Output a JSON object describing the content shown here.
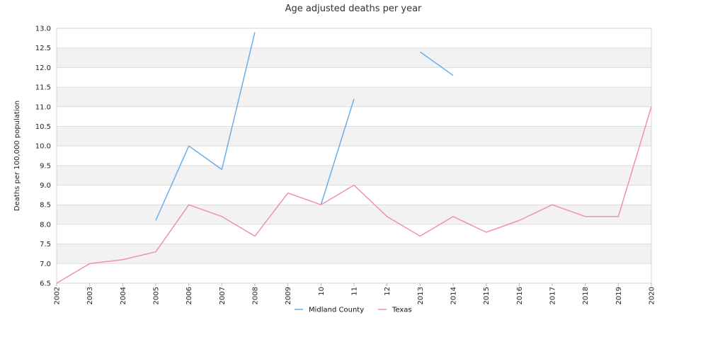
{
  "chart_data": {
    "type": "line",
    "title": "Age adjusted deaths per year",
    "xlabel": "",
    "ylabel": "Deaths per 100,000 population",
    "ylim": [
      6.5,
      13.0
    ],
    "ytick_step": 0.5,
    "x": [
      "2002",
      "2003",
      "2004",
      "2005",
      "2006",
      "2007",
      "2008",
      "2009",
      "2010",
      "2011",
      "2012",
      "2013",
      "2014",
      "2015",
      "2016",
      "2017",
      "2018",
      "2019",
      "2020"
    ],
    "x_tick_labels": [
      "2002",
      "2003",
      "2004",
      "2005",
      "2006",
      "2007",
      "2008",
      "2009",
      "10",
      "11",
      "12",
      "2013",
      "2014",
      "2015",
      "2016",
      "2017",
      "2018",
      "2019",
      "2020"
    ],
    "grid": true,
    "legend_position": "bottom",
    "series": [
      {
        "name": "Midland County",
        "color": "#6aaee8",
        "values": [
          null,
          null,
          null,
          8.1,
          10.0,
          9.4,
          12.9,
          null,
          8.5,
          11.2,
          null,
          12.4,
          11.8,
          null,
          null,
          null,
          null,
          null,
          null
        ]
      },
      {
        "name": "Texas",
        "color": "#f08cc0",
        "values": [
          6.5,
          7.0,
          7.1,
          7.3,
          8.5,
          8.2,
          7.7,
          8.8,
          8.5,
          9.0,
          8.2,
          7.7,
          8.2,
          7.8,
          8.1,
          8.5,
          8.2,
          8.2,
          11.0
        ]
      }
    ]
  }
}
